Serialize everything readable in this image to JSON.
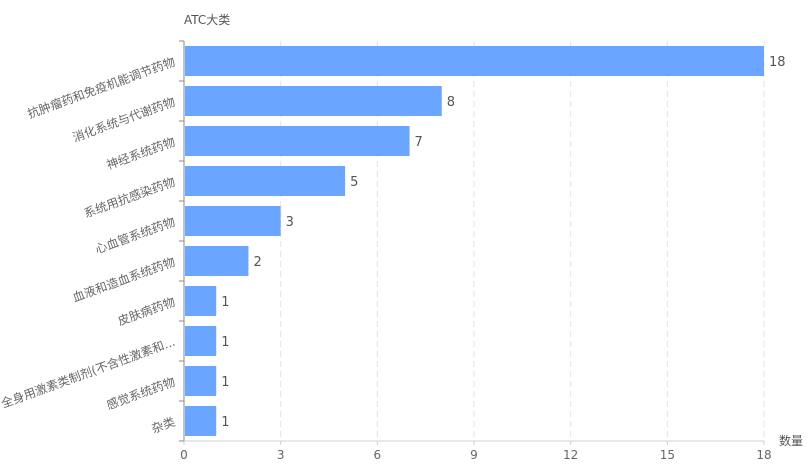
{
  "chart_data": {
    "type": "bar",
    "orientation": "horizontal",
    "ylabel": "ATC大类",
    "xlabel": "数量",
    "categories": [
      "抗肿瘤药和免疫机能调节药物",
      "消化系统与代谢药物",
      "神经系统药物",
      "系统用抗感染药物",
      "心血管系统药物",
      "血液和造血系统药物",
      "皮肤病药物",
      "全身用激素类制剂(不含性激素和...",
      "感觉系统药物",
      "杂类"
    ],
    "values": [
      18,
      8,
      7,
      5,
      3,
      2,
      1,
      1,
      1,
      1
    ],
    "xlim": [
      0,
      18
    ],
    "xticks": [
      0,
      3,
      6,
      9,
      12,
      15,
      18
    ],
    "grid": "vertical-dashed",
    "bar_color": "#6aa6ff",
    "data_labels": true
  }
}
